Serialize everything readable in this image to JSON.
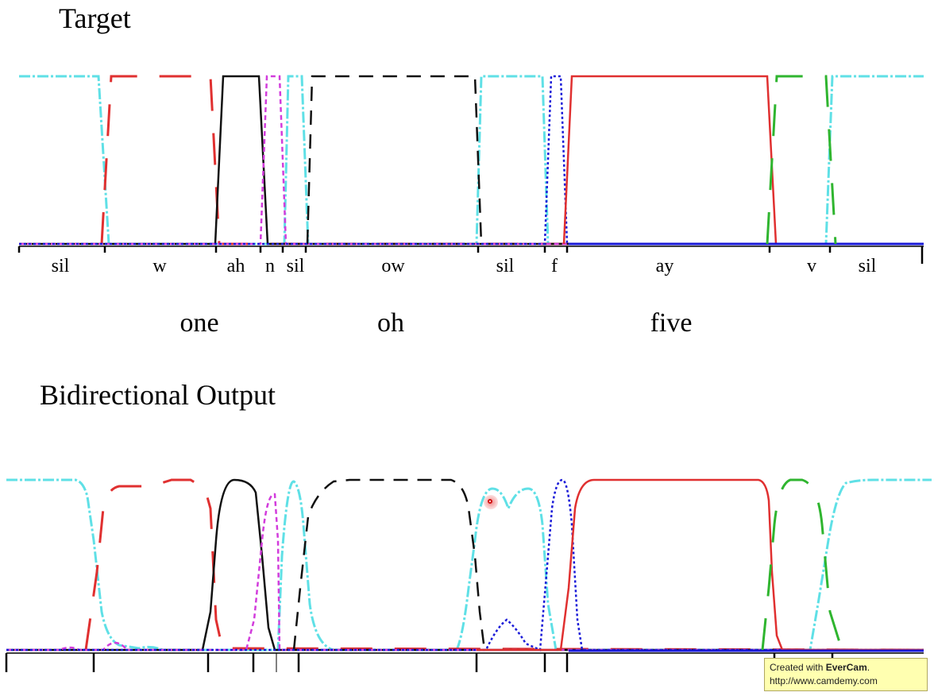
{
  "titles": {
    "target": "Target",
    "output": "Bidirectional Output"
  },
  "phonemes": [
    "sil",
    "w",
    "ah",
    "n",
    "sil",
    "ow",
    "sil",
    "f",
    "ay",
    "v",
    "sil"
  ],
  "words": [
    "one",
    "oh",
    "five"
  ],
  "watermark": {
    "prefix": "Created with ",
    "brand": "EverCam",
    "suffix": ".",
    "url": "http://www.camdemy.com"
  },
  "colors": {
    "cyan": "#5fe0e6",
    "red": "#e03030",
    "black": "#111111",
    "magenta": "#d23cdc",
    "blue": "#1a1ad8",
    "green": "#2fb52f"
  }
}
